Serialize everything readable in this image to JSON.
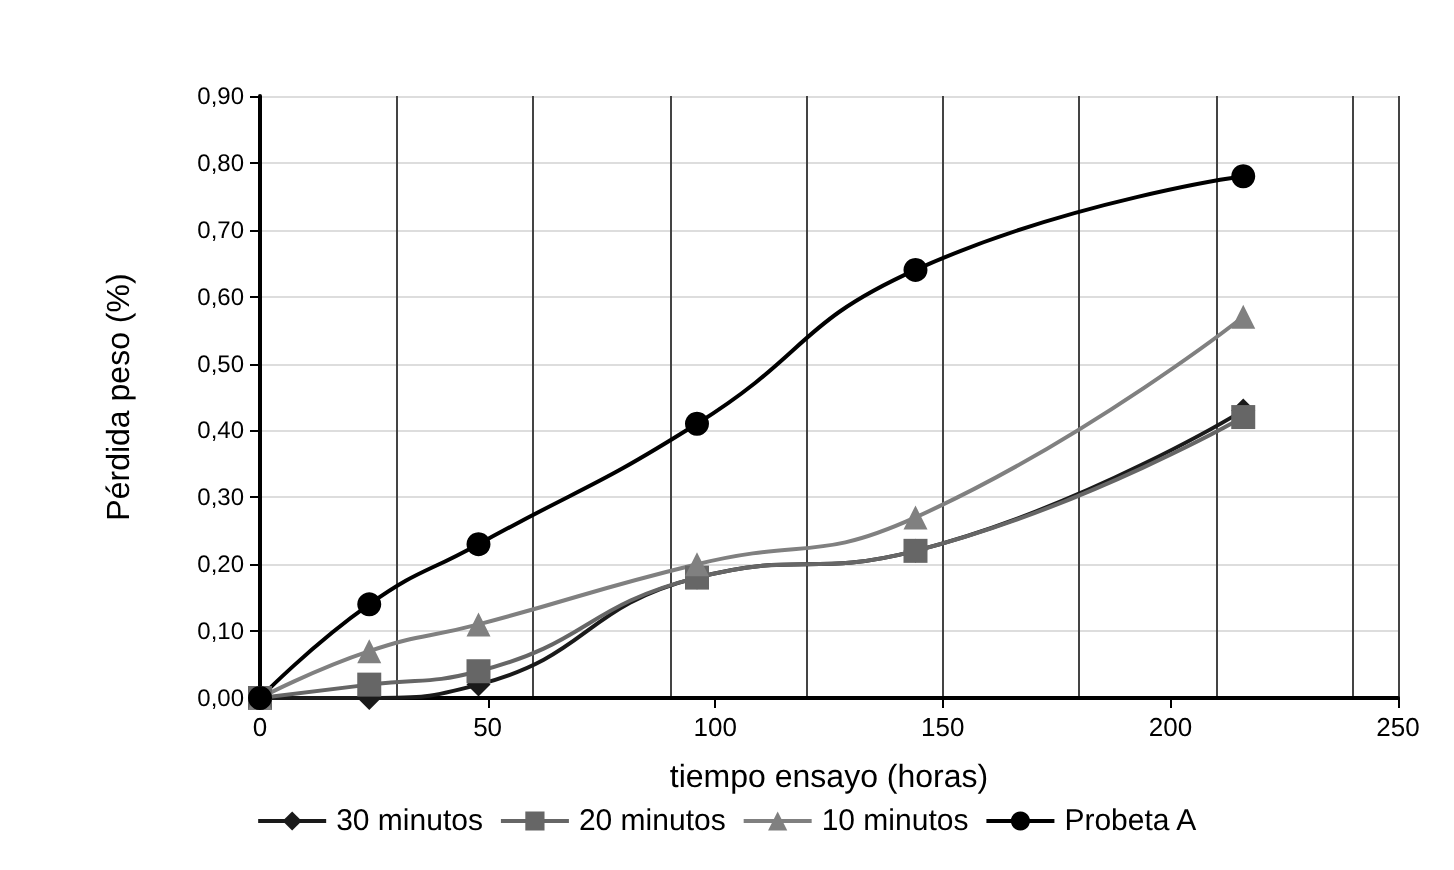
{
  "chart_data": {
    "type": "line",
    "xlabel": "tiempo ensayo (horas)",
    "ylabel": "Pérdida peso (%)",
    "x": [
      0,
      24,
      48,
      96,
      144,
      216
    ],
    "series": [
      {
        "name": "30 minutos",
        "color": "#1a1a1a",
        "marker": "diamond",
        "values": [
          0,
          0,
          0.02,
          0.18,
          0.22,
          0.43
        ]
      },
      {
        "name": "20 minutos",
        "color": "#666666",
        "marker": "square",
        "values": [
          0,
          0.02,
          0.04,
          0.18,
          0.22,
          0.42
        ]
      },
      {
        "name": "10 minutos",
        "color": "#808080",
        "marker": "triangle",
        "values": [
          0,
          0.07,
          0.11,
          0.2,
          0.27,
          0.57
        ]
      },
      {
        "name": "Probeta A",
        "color": "#000000",
        "marker": "circle",
        "values": [
          0,
          0.14,
          0.23,
          0.41,
          0.64,
          0.78
        ]
      }
    ],
    "xlim": [
      0,
      250
    ],
    "xticks": [
      0,
      50,
      100,
      150,
      200,
      250
    ],
    "ylim": [
      0,
      0.9
    ],
    "yticks": [
      {
        "value": 0,
        "label": "0,00"
      },
      {
        "value": 0.1,
        "label": "0,10"
      },
      {
        "value": 0.2,
        "label": "0,20"
      },
      {
        "value": 0.3,
        "label": "0,30"
      },
      {
        "value": 0.4,
        "label": "0,40"
      },
      {
        "value": 0.5,
        "label": "0,50"
      },
      {
        "value": 0.6,
        "label": "0,60"
      },
      {
        "value": 0.7,
        "label": "0,70"
      },
      {
        "value": 0.8,
        "label": "0,80"
      },
      {
        "value": 0.9,
        "label": "0,90"
      }
    ],
    "grid": true,
    "legend": "bottom"
  }
}
